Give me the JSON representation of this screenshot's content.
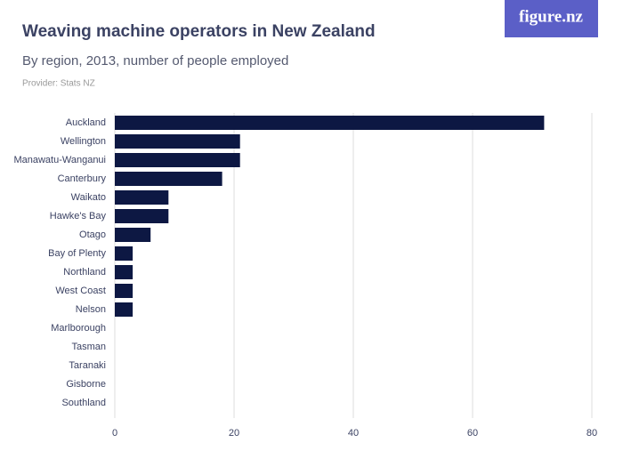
{
  "chart_data": {
    "type": "bar",
    "orientation": "horizontal",
    "title": "Weaving machine operators in New Zealand",
    "subtitle": "By region, 2013, number of people employed",
    "source": "Provider: Stats NZ",
    "logo": "figure.nz",
    "categories": [
      "Auckland",
      "Wellington",
      "Manawatu-Wanganui",
      "Canterbury",
      "Waikato",
      "Hawke's Bay",
      "Otago",
      "Bay of Plenty",
      "Northland",
      "West Coast",
      "Nelson",
      "Marlborough",
      "Tasman",
      "Taranaki",
      "Gisborne",
      "Southland"
    ],
    "values": [
      72,
      21,
      21,
      18,
      9,
      9,
      6,
      3,
      3,
      3,
      3,
      0,
      0,
      0,
      0,
      0
    ],
    "color": "#0d1843",
    "xlim": [
      0,
      80
    ],
    "xticks": [
      0,
      20,
      40,
      60,
      80
    ],
    "grid": true
  }
}
